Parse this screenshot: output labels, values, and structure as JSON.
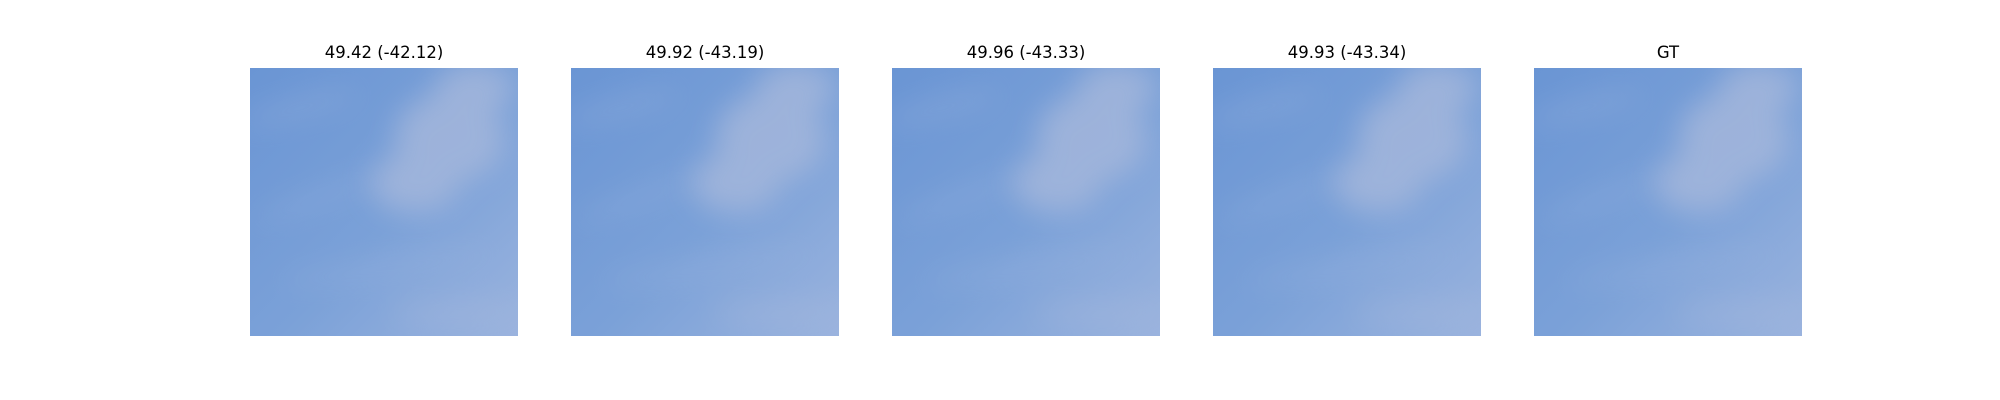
{
  "panels": [
    {
      "title": "49.42 (-42.12)",
      "image_name": "sky-cloud-image"
    },
    {
      "title": "49.92 (-43.19)",
      "image_name": "sky-cloud-image"
    },
    {
      "title": "49.96 (-43.33)",
      "image_name": "sky-cloud-image"
    },
    {
      "title": "49.93 (-43.34)",
      "image_name": "sky-cloud-image"
    },
    {
      "title": "GT",
      "image_name": "sky-cloud-image"
    }
  ],
  "colors": {
    "sky_deep": "#6a95d4",
    "sky_mid": "#7ba1d8",
    "sky_light": "#9ab3de",
    "cloud": "#a9b9dc"
  }
}
